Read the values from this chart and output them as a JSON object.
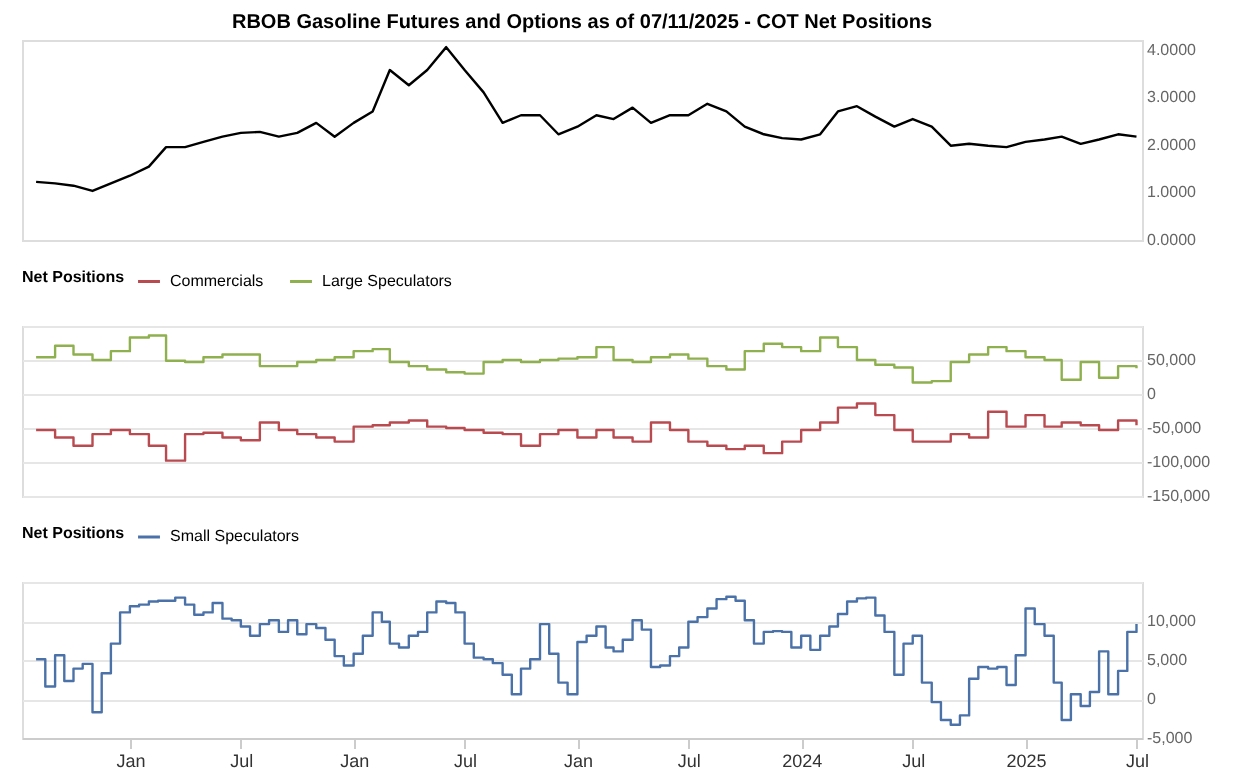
{
  "chart_data": [
    {
      "type": "line",
      "title": "RBOB Gasoline Futures and Options as of 07/11/2025 - COT Net Positions",
      "tick_labels": "y",
      "xlim": [
        "2020-07-09",
        "2025-07-10"
      ],
      "ylim": [
        0,
        4.2
      ],
      "yticks": [
        {
          "value": 0,
          "label": "0.0000"
        },
        {
          "value": 1,
          "label": "1.0000"
        },
        {
          "value": 2,
          "label": "2.0000"
        },
        {
          "value": 3,
          "label": "3.0000"
        },
        {
          "value": 4,
          "label": "4.0000"
        }
      ],
      "series": [
        {
          "color": "#000000",
          "x": [
            "2020-08-01",
            "2020-09-01",
            "2020-10-01",
            "2020-11-01",
            "2020-12-01",
            "2021-01-01",
            "2021-02-01",
            "2021-03-01",
            "2021-04-01",
            "2021-05-01",
            "2021-06-01",
            "2021-07-01",
            "2021-08-01",
            "2021-09-01",
            "2021-10-01",
            "2021-11-01",
            "2021-12-01",
            "2022-01-01",
            "2022-02-01",
            "2022-03-01",
            "2022-04-01",
            "2022-05-01",
            "2022-06-01",
            "2022-07-01",
            "2022-08-01",
            "2022-09-01",
            "2022-10-01",
            "2022-11-01",
            "2022-12-01",
            "2023-01-01",
            "2023-02-01",
            "2023-03-01",
            "2023-04-01",
            "2023-05-01",
            "2023-06-01",
            "2023-07-01",
            "2023-08-01",
            "2023-09-01",
            "2023-10-01",
            "2023-11-01",
            "2023-12-01",
            "2024-01-01",
            "2024-02-01",
            "2024-03-01",
            "2024-04-01",
            "2024-05-01",
            "2024-06-01",
            "2024-07-01",
            "2024-08-01",
            "2024-09-01",
            "2024-10-01",
            "2024-11-01",
            "2024-12-01",
            "2025-01-01",
            "2025-02-01",
            "2025-03-01",
            "2025-04-01",
            "2025-05-01",
            "2025-06-01",
            "2025-07-01"
          ],
          "values": [
            1.22,
            1.19,
            1.14,
            1.03,
            1.19,
            1.35,
            1.54,
            1.95,
            1.95,
            2.06,
            2.17,
            2.25,
            2.27,
            2.17,
            2.25,
            2.46,
            2.17,
            2.46,
            2.7,
            3.57,
            3.25,
            3.57,
            4.05,
            3.57,
            3.1,
            2.46,
            2.62,
            2.62,
            2.22,
            2.38,
            2.62,
            2.54,
            2.78,
            2.46,
            2.62,
            2.62,
            2.86,
            2.7,
            2.38,
            2.22,
            2.14,
            2.11,
            2.22,
            2.7,
            2.81,
            2.59,
            2.38,
            2.54,
            2.38,
            1.98,
            2.02,
            1.98,
            1.95,
            2.06,
            2.11,
            2.17,
            2.02,
            2.11,
            2.22,
            2.17
          ]
        }
      ]
    },
    {
      "type": "step",
      "tick_labels": "y",
      "legend": "top left",
      "legend_title": "Net Positions",
      "grid": "y",
      "xlim": [
        "2020-07-09",
        "2025-07-10"
      ],
      "ylim": [
        -150000,
        100000
      ],
      "yticks": [
        {
          "value": -150000,
          "label": "-150,000"
        },
        {
          "value": -100000,
          "label": "-100,000"
        },
        {
          "value": -50000,
          "label": "-50,000"
        },
        0,
        {
          "value": 50000,
          "label": "50,000"
        },
        {
          "value": 100000,
          "label": null
        }
      ],
      "x": [
        "2020-08-01",
        "2020-09-01",
        "2020-10-01",
        "2020-11-01",
        "2020-12-01",
        "2021-01-01",
        "2021-02-01",
        "2021-03-01",
        "2021-04-01",
        "2021-05-01",
        "2021-06-01",
        "2021-07-01",
        "2021-08-01",
        "2021-09-01",
        "2021-10-01",
        "2021-11-01",
        "2021-12-01",
        "2022-01-01",
        "2022-02-01",
        "2022-03-01",
        "2022-04-01",
        "2022-05-01",
        "2022-06-01",
        "2022-07-01",
        "2022-08-01",
        "2022-09-01",
        "2022-10-01",
        "2022-11-01",
        "2022-12-01",
        "2023-01-01",
        "2023-02-01",
        "2023-03-01",
        "2023-04-01",
        "2023-05-01",
        "2023-06-01",
        "2023-07-01",
        "2023-08-01",
        "2023-09-01",
        "2023-10-01",
        "2023-11-01",
        "2023-12-01",
        "2024-01-01",
        "2024-02-01",
        "2024-03-01",
        "2024-04-01",
        "2024-05-01",
        "2024-06-01",
        "2024-07-01",
        "2024-08-01",
        "2024-09-01",
        "2024-10-01",
        "2024-11-01",
        "2024-12-01",
        "2025-01-01",
        "2025-02-01",
        "2025-03-01",
        "2025-04-01",
        "2025-05-01",
        "2025-06-01",
        "2025-07-01"
      ],
      "series": [
        {
          "name": "Commercials",
          "color": "#b94a4f",
          "values": [
            -53000,
            -64000,
            -76000,
            -59000,
            -53000,
            -59000,
            -76000,
            -98000,
            -59000,
            -57000,
            -64000,
            -68000,
            -42000,
            -53000,
            -59000,
            -64000,
            -70000,
            -48000,
            -46000,
            -42000,
            -39000,
            -48000,
            -50000,
            -53000,
            -57000,
            -59000,
            -76000,
            -59000,
            -53000,
            -64000,
            -53000,
            -64000,
            -70000,
            -42000,
            -53000,
            -70000,
            -76000,
            -81000,
            -76000,
            -87000,
            -70000,
            -53000,
            -42000,
            -20000,
            -14000,
            -31000,
            -53000,
            -70000,
            -70000,
            -59000,
            -64000,
            -26000,
            -48000,
            -31000,
            -48000,
            -42000,
            -46000,
            -53000,
            -39000,
            -46000
          ]
        },
        {
          "name": "Large Speculators",
          "color": "#8fb04e",
          "values": [
            54000,
            71000,
            58000,
            50000,
            63000,
            83000,
            86000,
            49000,
            47000,
            54000,
            58000,
            58000,
            41000,
            41000,
            47000,
            50000,
            54000,
            63000,
            66000,
            47000,
            41000,
            36000,
            32000,
            30000,
            47000,
            50000,
            47000,
            50000,
            52000,
            54000,
            69000,
            50000,
            47000,
            54000,
            58000,
            52000,
            41000,
            36000,
            63000,
            74000,
            69000,
            63000,
            83000,
            69000,
            50000,
            43000,
            39000,
            17000,
            19000,
            47000,
            58000,
            69000,
            63000,
            54000,
            50000,
            21000,
            47000,
            24000,
            41000,
            38000
          ]
        }
      ]
    },
    {
      "type": "step",
      "legend": "top left",
      "legend_title": "Net Positions",
      "grid": "y",
      "xlim": [
        "2020-07-09",
        "2025-07-10"
      ],
      "xticks": [
        {
          "value": "2021-01-01",
          "label": "Jan"
        },
        {
          "value": "2021-07-01",
          "label": "Jul"
        },
        {
          "value": "2022-01-01",
          "label": "Jan"
        },
        {
          "value": "2022-07-01",
          "label": "Jul"
        },
        {
          "value": "2023-01-01",
          "label": "Jan"
        },
        {
          "value": "2023-07-01",
          "label": "Jul"
        },
        {
          "value": "2024-01-01",
          "label": "2024"
        },
        {
          "value": "2024-07-01",
          "label": "Jul"
        },
        {
          "value": "2025-01-01",
          "label": "2025"
        },
        {
          "value": "2025-07-01",
          "label": "Jul"
        }
      ],
      "ylim": [
        -5000,
        15000
      ],
      "yticks": [
        {
          "value": -5000,
          "label": "-5,000"
        },
        0,
        {
          "value": 5000,
          "label": "5,000"
        },
        {
          "value": 10000,
          "label": "10,000"
        },
        {
          "value": 15000,
          "label": null
        }
      ],
      "series": [
        {
          "name": "Small Speculators",
          "color": "#4a72a8",
          "x": [
            "2020-08-01",
            "2020-08-16",
            "2020-09-01",
            "2020-09-16",
            "2020-10-01",
            "2020-10-16",
            "2020-11-01",
            "2020-11-16",
            "2020-12-01",
            "2020-12-16",
            "2021-01-01",
            "2021-01-16",
            "2021-02-01",
            "2021-02-16",
            "2021-03-01",
            "2021-03-16",
            "2021-04-01",
            "2021-04-16",
            "2021-05-01",
            "2021-05-16",
            "2021-06-01",
            "2021-06-16",
            "2021-07-01",
            "2021-07-16",
            "2021-08-01",
            "2021-08-16",
            "2021-09-01",
            "2021-09-16",
            "2021-10-01",
            "2021-10-16",
            "2021-11-01",
            "2021-11-16",
            "2021-12-01",
            "2021-12-16",
            "2022-01-01",
            "2022-01-16",
            "2022-02-01",
            "2022-02-16",
            "2022-03-01",
            "2022-03-16",
            "2022-04-01",
            "2022-04-16",
            "2022-05-01",
            "2022-05-16",
            "2022-06-01",
            "2022-06-16",
            "2022-07-01",
            "2022-07-16",
            "2022-08-01",
            "2022-08-16",
            "2022-09-01",
            "2022-09-16",
            "2022-10-01",
            "2022-10-16",
            "2022-11-01",
            "2022-11-16",
            "2022-12-01",
            "2022-12-16",
            "2023-01-01",
            "2023-01-16",
            "2023-02-01",
            "2023-02-16",
            "2023-03-01",
            "2023-03-16",
            "2023-04-01",
            "2023-04-16",
            "2023-05-01",
            "2023-05-16",
            "2023-06-01",
            "2023-06-16",
            "2023-07-01",
            "2023-07-16",
            "2023-08-01",
            "2023-08-16",
            "2023-09-01",
            "2023-09-16",
            "2023-10-01",
            "2023-10-16",
            "2023-11-01",
            "2023-11-16",
            "2023-12-01",
            "2023-12-16",
            "2024-01-01",
            "2024-01-16",
            "2024-02-01",
            "2024-02-16",
            "2024-03-01",
            "2024-03-16",
            "2024-04-01",
            "2024-04-16",
            "2024-05-01",
            "2024-05-16",
            "2024-06-01",
            "2024-06-16",
            "2024-07-01",
            "2024-07-16",
            "2024-08-01",
            "2024-08-16",
            "2024-09-01",
            "2024-09-16",
            "2024-10-01",
            "2024-10-16",
            "2024-11-01",
            "2024-11-16",
            "2024-12-01",
            "2024-12-16",
            "2025-01-01",
            "2025-01-16",
            "2025-02-01",
            "2025-02-16",
            "2025-03-01",
            "2025-03-16",
            "2025-04-01",
            "2025-04-16",
            "2025-05-01",
            "2025-05-16",
            "2025-06-01",
            "2025-06-16",
            "2025-07-01"
          ],
          "values": [
            5100,
            1600,
            5600,
            2300,
            3900,
            4500,
            -1700,
            3300,
            7100,
            11100,
            11900,
            12100,
            12500,
            12600,
            12600,
            13000,
            12100,
            10800,
            11100,
            12300,
            10300,
            10100,
            9300,
            8100,
            9600,
            10100,
            8600,
            10100,
            8300,
            9600,
            9100,
            7600,
            5500,
            4300,
            5800,
            8100,
            11100,
            9900,
            7100,
            6600,
            8100,
            8600,
            11100,
            12500,
            12300,
            11100,
            7100,
            5300,
            5100,
            4600,
            3100,
            600,
            3900,
            5100,
            9600,
            5800,
            2100,
            600,
            7300,
            8100,
            9300,
            6600,
            6100,
            7600,
            10100,
            8900,
            4100,
            4300,
            5500,
            6600,
            9900,
            10500,
            11600,
            12800,
            13100,
            12600,
            10100,
            7100,
            8600,
            8700,
            8600,
            6600,
            8100,
            6300,
            8100,
            9300,
            10900,
            12500,
            12900,
            13000,
            10700,
            8600,
            3100,
            7100,
            8100,
            2100,
            -400,
            -2700,
            -3300,
            -2100,
            2600,
            4100,
            3900,
            4100,
            1800,
            5600,
            11600,
            9600,
            8100,
            2100,
            -2700,
            600,
            -900,
            900,
            6100,
            600,
            3600,
            8600,
            9600
          ]
        }
      ]
    }
  ]
}
